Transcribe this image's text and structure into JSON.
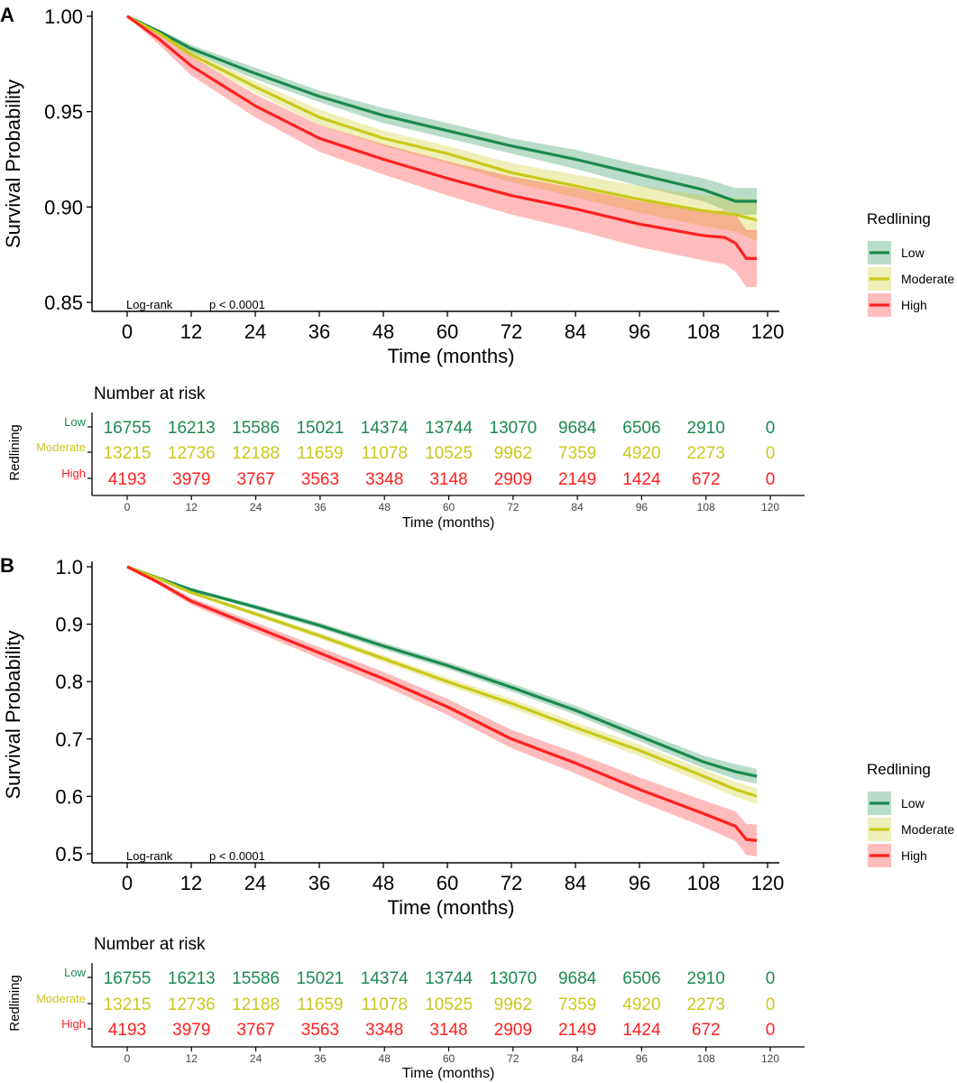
{
  "chart_data": [
    {
      "panel": "A",
      "type": "line",
      "subtype": "kaplan-meier",
      "ylabel": "Survival Probability",
      "xlabel": "Time (months)",
      "xlim": [
        0,
        120
      ],
      "ylim": [
        0.85,
        1.0
      ],
      "x_ticks": [
        "0",
        "12",
        "24",
        "36",
        "48",
        "60",
        "72",
        "84",
        "96",
        "108",
        "120"
      ],
      "y_ticks": [
        "0.85",
        "0.90",
        "0.95",
        "1.00"
      ],
      "y_tick_values": [
        0.85,
        0.9,
        0.95,
        1.0
      ],
      "annotation_test": "Log-rank",
      "annotation_p": "p < 0.0001",
      "legend_title": "Redlining",
      "series": [
        {
          "name": "Low",
          "color": "#1a8a4f",
          "x": [
            0,
            6,
            12,
            24,
            36,
            48,
            60,
            72,
            84,
            96,
            108,
            114,
            118
          ],
          "values": [
            1.0,
            0.992,
            0.983,
            0.97,
            0.958,
            0.948,
            0.94,
            0.932,
            0.925,
            0.917,
            0.909,
            0.903,
            0.903
          ],
          "lower": [
            1.0,
            0.991,
            0.981,
            0.967,
            0.955,
            0.944,
            0.936,
            0.928,
            0.92,
            0.911,
            0.903,
            0.896,
            0.896
          ],
          "upper": [
            1.0,
            0.993,
            0.985,
            0.973,
            0.961,
            0.952,
            0.944,
            0.936,
            0.93,
            0.922,
            0.915,
            0.91,
            0.91
          ]
        },
        {
          "name": "Moderate",
          "color": "#c9c91a",
          "x": [
            0,
            6,
            12,
            24,
            36,
            48,
            60,
            72,
            84,
            96,
            108,
            114,
            118
          ],
          "values": [
            1.0,
            0.991,
            0.98,
            0.963,
            0.947,
            0.936,
            0.928,
            0.918,
            0.911,
            0.904,
            0.898,
            0.896,
            0.893
          ],
          "lower": [
            1.0,
            0.99,
            0.978,
            0.96,
            0.943,
            0.932,
            0.923,
            0.913,
            0.905,
            0.897,
            0.89,
            0.887,
            0.882
          ],
          "upper": [
            1.0,
            0.992,
            0.982,
            0.966,
            0.951,
            0.94,
            0.932,
            0.923,
            0.917,
            0.911,
            0.906,
            0.905,
            0.904
          ]
        },
        {
          "name": "High",
          "color": "#ff2020",
          "x": [
            0,
            6,
            12,
            24,
            36,
            48,
            60,
            72,
            84,
            96,
            108,
            112,
            114,
            116,
            118
          ],
          "values": [
            1.0,
            0.988,
            0.974,
            0.953,
            0.936,
            0.925,
            0.915,
            0.906,
            0.899,
            0.891,
            0.885,
            0.884,
            0.881,
            0.873,
            0.873
          ],
          "lower": [
            1.0,
            0.985,
            0.969,
            0.947,
            0.929,
            0.917,
            0.906,
            0.896,
            0.888,
            0.879,
            0.872,
            0.87,
            0.866,
            0.858,
            0.858
          ],
          "upper": [
            1.0,
            0.991,
            0.979,
            0.959,
            0.943,
            0.933,
            0.924,
            0.916,
            0.91,
            0.903,
            0.898,
            0.898,
            0.896,
            0.888,
            0.888
          ]
        }
      ],
      "risk_table": {
        "title": "Number at risk",
        "strata_label": "Redlining",
        "xlabel": "Time (months)",
        "times": [
          "0",
          "12",
          "24",
          "36",
          "48",
          "60",
          "72",
          "84",
          "96",
          "108",
          "120"
        ],
        "rows": [
          {
            "name": "Low",
            "color": "#1a8a4f",
            "values": [
              "16755",
              "16213",
              "15586",
              "15021",
              "14374",
              "13744",
              "13070",
              "9684",
              "6506",
              "2910",
              "0"
            ]
          },
          {
            "name": "Moderate",
            "color": "#c9c91a",
            "values": [
              "13215",
              "12736",
              "12188",
              "11659",
              "11078",
              "10525",
              "9962",
              "7359",
              "4920",
              "2273",
              "0"
            ]
          },
          {
            "name": "High",
            "color": "#ff2020",
            "values": [
              "4193",
              "3979",
              "3767",
              "3563",
              "3348",
              "3148",
              "2909",
              "2149",
              "1424",
              "672",
              "0"
            ]
          }
        ]
      }
    },
    {
      "panel": "B",
      "type": "line",
      "subtype": "kaplan-meier",
      "ylabel": "Survival Probability",
      "xlabel": "Time (months)",
      "xlim": [
        0,
        120
      ],
      "ylim": [
        0.5,
        1.0
      ],
      "x_ticks": [
        "0",
        "12",
        "24",
        "36",
        "48",
        "60",
        "72",
        "84",
        "96",
        "108",
        "120"
      ],
      "y_ticks": [
        "0.5",
        "0.6",
        "0.7",
        "0.8",
        "0.9",
        "1.0"
      ],
      "y_tick_values": [
        0.5,
        0.6,
        0.7,
        0.8,
        0.9,
        1.0
      ],
      "annotation_test": "Log-rank",
      "annotation_p": "p < 0.0001",
      "legend_title": "Redlining",
      "series": [
        {
          "name": "Low",
          "color": "#1a8a4f",
          "x": [
            0,
            6,
            12,
            24,
            36,
            48,
            60,
            72,
            84,
            96,
            108,
            114,
            118
          ],
          "values": [
            1.0,
            0.98,
            0.96,
            0.93,
            0.898,
            0.862,
            0.828,
            0.79,
            0.75,
            0.705,
            0.66,
            0.643,
            0.635
          ],
          "lower": [
            1.0,
            0.978,
            0.957,
            0.926,
            0.893,
            0.856,
            0.822,
            0.783,
            0.742,
            0.696,
            0.649,
            0.63,
            0.622
          ],
          "upper": [
            1.0,
            0.982,
            0.963,
            0.934,
            0.903,
            0.868,
            0.834,
            0.797,
            0.758,
            0.714,
            0.671,
            0.656,
            0.648
          ]
        },
        {
          "name": "Moderate",
          "color": "#c9c91a",
          "x": [
            0,
            6,
            12,
            24,
            36,
            48,
            60,
            72,
            84,
            96,
            108,
            114,
            118
          ],
          "values": [
            1.0,
            0.979,
            0.955,
            0.918,
            0.88,
            0.84,
            0.8,
            0.762,
            0.72,
            0.68,
            0.635,
            0.612,
            0.6
          ],
          "lower": [
            1.0,
            0.977,
            0.952,
            0.914,
            0.875,
            0.834,
            0.793,
            0.754,
            0.711,
            0.67,
            0.623,
            0.599,
            0.586
          ],
          "upper": [
            1.0,
            0.981,
            0.958,
            0.922,
            0.885,
            0.846,
            0.807,
            0.77,
            0.729,
            0.69,
            0.647,
            0.625,
            0.614
          ]
        },
        {
          "name": "High",
          "color": "#ff2020",
          "x": [
            0,
            6,
            12,
            24,
            36,
            48,
            60,
            72,
            84,
            96,
            108,
            114,
            116,
            118
          ],
          "values": [
            1.0,
            0.972,
            0.94,
            0.895,
            0.85,
            0.805,
            0.756,
            0.7,
            0.658,
            0.612,
            0.57,
            0.548,
            0.525,
            0.523
          ],
          "lower": [
            1.0,
            0.968,
            0.934,
            0.887,
            0.84,
            0.793,
            0.742,
            0.684,
            0.64,
            0.591,
            0.547,
            0.522,
            0.498,
            0.495
          ],
          "upper": [
            1.0,
            0.976,
            0.946,
            0.903,
            0.86,
            0.817,
            0.77,
            0.716,
            0.676,
            0.633,
            0.593,
            0.574,
            0.552,
            0.551
          ]
        }
      ],
      "risk_table": {
        "title": "Number at risk",
        "strata_label": "Redlining",
        "xlabel": "Time (months)",
        "times": [
          "0",
          "12",
          "24",
          "36",
          "48",
          "60",
          "72",
          "84",
          "96",
          "108",
          "120"
        ],
        "rows": [
          {
            "name": "Low",
            "color": "#1a8a4f",
            "values": [
              "16755",
              "16213",
              "15586",
              "15021",
              "14374",
              "13744",
              "13070",
              "9684",
              "6506",
              "2910",
              "0"
            ]
          },
          {
            "name": "Moderate",
            "color": "#c9c91a",
            "values": [
              "13215",
              "12736",
              "12188",
              "11659",
              "11078",
              "10525",
              "9962",
              "7359",
              "4920",
              "2273",
              "0"
            ]
          },
          {
            "name": "High",
            "color": "#ff2020",
            "values": [
              "4193",
              "3979",
              "3767",
              "3563",
              "3348",
              "3148",
              "2909",
              "2149",
              "1424",
              "672",
              "0"
            ]
          }
        ]
      }
    }
  ]
}
